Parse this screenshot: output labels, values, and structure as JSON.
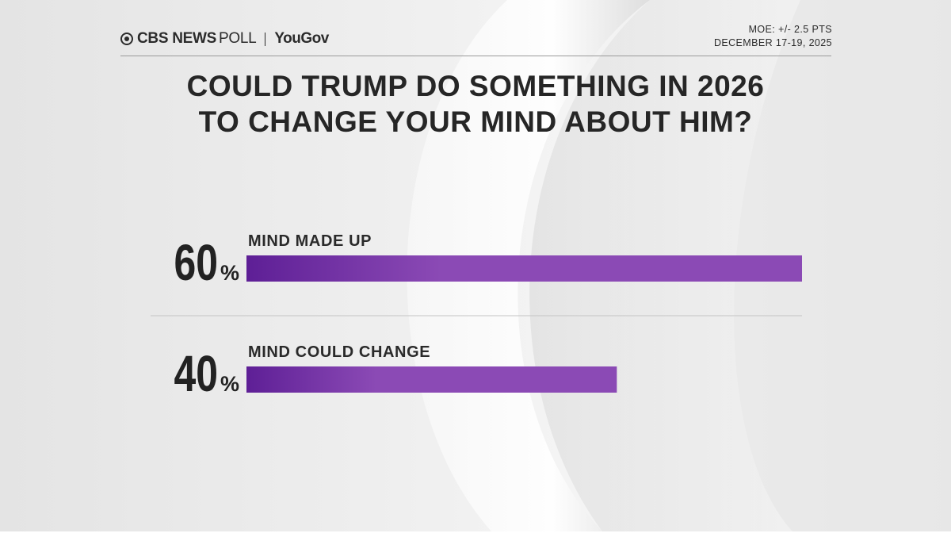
{
  "header": {
    "brand_cbs": "CBS NEWS",
    "brand_poll": "POLL",
    "brand_partner": "YouGov",
    "moe": "MOE: +/- 2.5 PTS",
    "dates": "DECEMBER 17-19, 2025"
  },
  "title_lines": [
    "COULD TRUMP DO SOMETHING IN 2026",
    "TO CHANGE YOUR MIND ABOUT HIM?"
  ],
  "colors": {
    "bar_dark": "#5e1f96",
    "bar_light": "#8b4ab5",
    "text": "#262626"
  },
  "chart_data": {
    "type": "bar",
    "orientation": "horizontal",
    "categories": [
      "MIND MADE UP",
      "MIND COULD CHANGE"
    ],
    "values": [
      60,
      40
    ],
    "value_suffix": "%",
    "xlim": [
      0,
      60
    ]
  }
}
